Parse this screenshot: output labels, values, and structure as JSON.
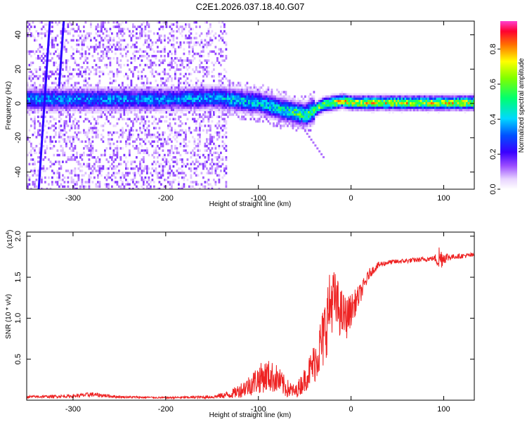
{
  "title": "C2E1.2026.037.18.40.G07",
  "chart_data": [
    {
      "type": "heatmap",
      "xlabel": "Height of straight line (km)",
      "ylabel": "Frequency (Hz)",
      "xlim": [
        -350,
        133
      ],
      "ylim": [
        -50,
        48
      ],
      "xticks": [
        -300,
        -200,
        -100,
        0,
        100
      ],
      "yticks": [
        -40,
        -20,
        0,
        20,
        40
      ],
      "xtick_labels": [
        "-300",
        "-200",
        "-100",
        "0",
        "100"
      ],
      "ytick_labels": [
        "-40",
        "-20",
        "0",
        "20",
        "40"
      ],
      "colorbar": {
        "label": "Normalized spectral amplitude",
        "range": [
          0,
          0.96
        ],
        "ticks": [
          0.0,
          0.2,
          0.4,
          0.6,
          0.8
        ],
        "tick_labels": [
          "0.0",
          "0.2",
          "0.4",
          "0.6",
          "0.8"
        ]
      },
      "ridge": {
        "x": [
          -350,
          -300,
          -200,
          -150,
          -100,
          -75,
          -60,
          -50,
          -40,
          -30,
          -20,
          -10,
          0,
          20,
          50,
          100,
          133
        ],
        "frequency": [
          3,
          3,
          3,
          4,
          1,
          -3,
          -5,
          -6,
          -3,
          0,
          1,
          2,
          1,
          1,
          1,
          1,
          1
        ],
        "peak_amplitude": [
          0.45,
          0.45,
          0.45,
          0.5,
          0.55,
          0.6,
          0.7,
          0.7,
          0.75,
          0.85,
          0.9,
          0.9,
          0.9,
          0.9,
          0.9,
          0.9,
          0.9
        ]
      },
      "noise_region_xmax": -135
    },
    {
      "type": "line",
      "xlabel": "Height of straight line (km)",
      "ylabel": "SNR (10 * v/v)",
      "y_multiplier": "(x10",
      "y_multiplier_exp": "4",
      "y_multiplier_close": ")",
      "xlim": [
        -350,
        133
      ],
      "ylim": [
        0,
        20500
      ],
      "xticks": [
        -300,
        -200,
        -100,
        0,
        100
      ],
      "yticks": [
        5000,
        10000,
        15000,
        20000
      ],
      "xtick_labels": [
        "-300",
        "-200",
        "-100",
        "0",
        "100"
      ],
      "ytick_labels": [
        "0.5",
        "1.0",
        "1.5",
        "2.0"
      ],
      "series": [
        {
          "name": "SNR",
          "color": "#ee2222",
          "x": [
            -350,
            -300,
            -280,
            -250,
            -200,
            -150,
            -130,
            -120,
            -110,
            -100,
            -90,
            -80,
            -70,
            -60,
            -50,
            -40,
            -30,
            -25,
            -20,
            -15,
            -10,
            -5,
            0,
            10,
            20,
            30,
            40,
            60,
            80,
            90,
            95,
            100,
            110,
            120,
            133
          ],
          "y": [
            400,
            500,
            700,
            400,
            300,
            400,
            700,
            1200,
            1800,
            2600,
            3000,
            2600,
            1500,
            1000,
            2500,
            4500,
            7500,
            10500,
            12500,
            11500,
            10500,
            10000,
            11000,
            13000,
            15500,
            16500,
            16800,
            17000,
            17200,
            17300,
            17300,
            17400,
            17500,
            17600,
            17700
          ],
          "spread": [
            150,
            200,
            300,
            150,
            100,
            200,
            500,
            900,
            1300,
            1800,
            2000,
            1800,
            1200,
            800,
            1500,
            2500,
            4000,
            4500,
            4000,
            3500,
            3000,
            2600,
            2000,
            1200,
            600,
            400,
            300,
            300,
            300,
            300,
            1800,
            800,
            300,
            300,
            300
          ]
        }
      ]
    }
  ]
}
